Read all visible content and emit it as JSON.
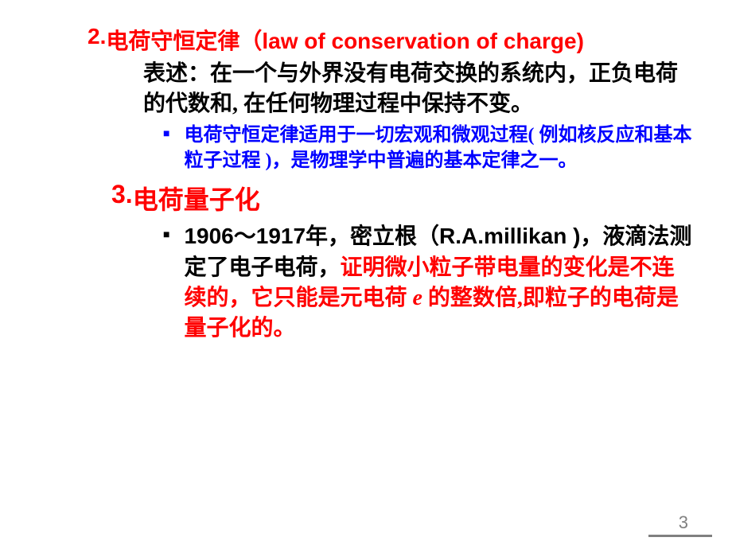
{
  "section2": {
    "number": "2.",
    "title_cn": "电荷守恒定律（",
    "title_en": "law of conservation of charge",
    "title_close": ")",
    "description": "表述：在一个与外界没有电荷交换的系统内，正负电荷的代数和, 在任何物理过程中保持不变。",
    "bullet": "电荷守恒定律适用于一切宏观和微观过程( 例如核反应和基本粒子过程 )，是物理学中普遍的基本定律之一。"
  },
  "section3": {
    "number": "3.",
    "title": "电荷量子化",
    "bullet_part1": "1906～1917年，密立根（R.A.millikan )，液滴法测定了电子电荷，",
    "bullet_part2_a": "证明微小粒子带电量的变化是不连续的，它只能是元电荷 ",
    "bullet_italic": "e",
    "bullet_part2_b": " 的整数倍,即粒子的电荷是量子化的。"
  },
  "page": {
    "number": "3"
  },
  "colors": {
    "red": "#ff0000",
    "blue": "#0000ff",
    "black": "#000000",
    "gray": "#808080",
    "background": "#ffffff"
  }
}
